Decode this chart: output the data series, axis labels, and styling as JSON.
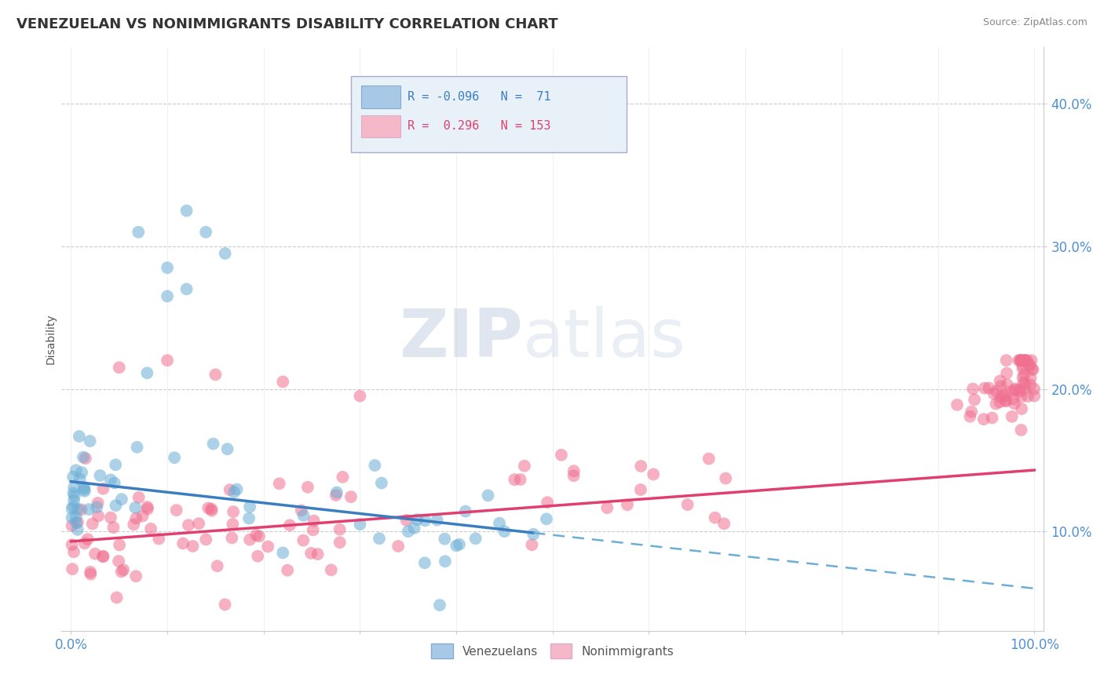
{
  "title": "VENEZUELAN VS NONIMMIGRANTS DISABILITY CORRELATION CHART",
  "source_text": "Source: ZipAtlas.com",
  "ylabel": "Disability",
  "xlim": [
    -0.01,
    1.01
  ],
  "ylim": [
    0.03,
    0.44
  ],
  "yticks": [
    0.1,
    0.2,
    0.3,
    0.4
  ],
  "ytick_labels": [
    "10.0%",
    "20.0%",
    "30.0%",
    "40.0%"
  ],
  "xtick_vals": [
    0.0,
    0.1,
    0.2,
    0.3,
    0.4,
    0.5,
    0.6,
    0.7,
    0.8,
    0.9,
    1.0
  ],
  "xtick_labels": [
    "0.0%",
    "",
    "",
    "",
    "",
    "",
    "",
    "",
    "",
    "",
    "100.0%"
  ],
  "venezuelan_color": "#6baed6",
  "nonimmigrant_color": "#f07090",
  "trend_venezuelan_solid_color": "#3a7ebf",
  "trend_venezuelan_dash_color": "#6baed6",
  "trend_nonimmigrant_color": "#e04070",
  "background_color": "#ffffff",
  "grid_color": "#cccccc",
  "watermark_zip_color": "#c8d8e8",
  "watermark_atlas_color": "#d0d8e0",
  "legend_box_color": "#e8f0f8",
  "legend_border_color": "#aaaacc",
  "legend_text_blue": "#3a7ebf",
  "legend_text_pink": "#e04070",
  "ytick_color": "#5090d0",
  "xtick_color": "#5090d0",
  "venezuelan_R": -0.096,
  "venezuelan_N": 71,
  "nonimmigrant_R": 0.296,
  "nonimmigrant_N": 153,
  "ven_trend_x0": 0.0,
  "ven_trend_x_solid_end": 0.48,
  "ven_trend_x1": 1.0,
  "ven_trend_y0": 0.135,
  "ven_trend_y1": 0.06,
  "non_trend_x0": 0.0,
  "non_trend_x1": 1.0,
  "non_trend_y0": 0.093,
  "non_trend_y1": 0.143
}
